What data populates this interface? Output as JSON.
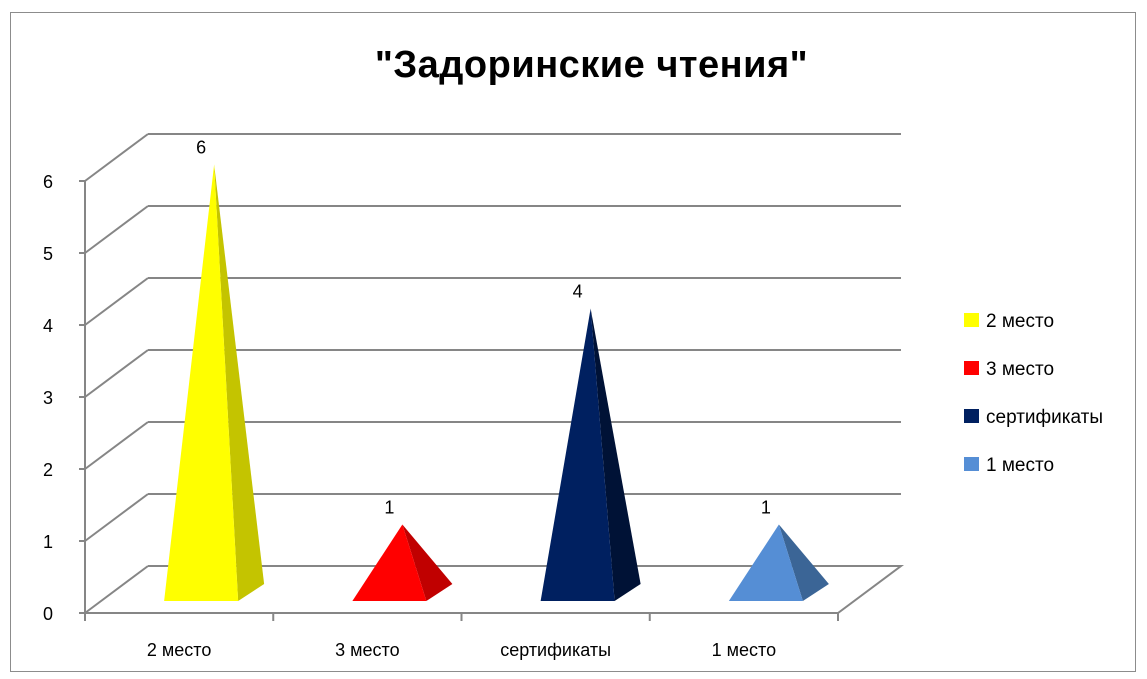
{
  "chart_data": {
    "type": "bar",
    "title": "\"Задоринские чтения\"",
    "categories": [
      "2 место",
      "3 место",
      "сертификаты",
      "1 место"
    ],
    "values": [
      6,
      1,
      4,
      1
    ],
    "data_labels": [
      "6",
      "1",
      "4",
      "1"
    ],
    "y_ticks": [
      "0",
      "1",
      "2",
      "3",
      "4",
      "5",
      "6"
    ],
    "ylim": [
      0,
      6
    ],
    "grid": true,
    "legend_position": "right",
    "legend": [
      {
        "label": "2 место",
        "color": "#ffff00"
      },
      {
        "label": "3 место",
        "color": "#ff0000"
      },
      {
        "label": "сертификаты",
        "color": "#002060"
      },
      {
        "label": "1 место",
        "color": "#558ed5"
      }
    ],
    "bar_colors": [
      "#ffff00",
      "#ff0000",
      "#002060",
      "#558ed5"
    ],
    "bar_shadow_colors": [
      "#c4c400",
      "#c00000",
      "#001236",
      "#3b6596"
    ],
    "shape": "pyramid"
  }
}
